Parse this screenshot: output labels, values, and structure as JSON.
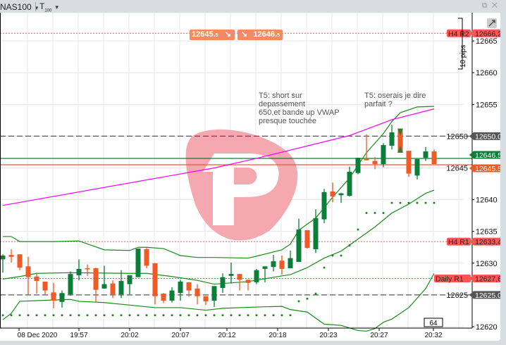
{
  "header": {
    "symbol": "NAS100",
    "timeframe": "T",
    "timeframe_sub": "100",
    "icons": [
      "popout-icon",
      "close-icon"
    ]
  },
  "quote": {
    "bid": "12645.",
    "bid_small": "5",
    "ask": "12646.",
    "ask_small": "5"
  },
  "annotations": [
    {
      "lines": [
        "T5: short sur",
        "depassement",
        "650,et bande up VWAP",
        "presque touchée"
      ]
    },
    {
      "lines": [
        "T5: oserais je dire",
        "parfait ?"
      ]
    }
  ],
  "measure_label": "10 pips",
  "cursor_badge": "64",
  "colors": {
    "up": "#0b7f3a",
    "down": "#f05a24",
    "band": "#1a8a1a",
    "vwap": "#ff00ff",
    "pivot": "#ff4d4d",
    "sar": "#1a8a1a",
    "watermark": "#f6a8b0"
  },
  "chart_data": {
    "type": "candlestick",
    "y_ticks": [
      12620,
      12625,
      12630,
      12635,
      12640,
      12645,
      12650,
      12655,
      12660,
      12665
    ],
    "ylim": [
      12619.8,
      12668.1
    ],
    "grid": true,
    "x_labels": [
      "08 Dec 2020",
      "19:57",
      "20:02",
      "20:07",
      "20:12",
      "20:18",
      "20:23",
      "20:27",
      "20:32"
    ],
    "candles": [
      [
        12630.6,
        12631.4,
        12628.5,
        12631.2
      ],
      [
        12631.3,
        12632.2,
        12630.1,
        12631.0
      ],
      [
        12631.4,
        12631.4,
        12628.9,
        12629.3
      ],
      [
        12629.5,
        12631.0,
        12625.1,
        12627.8
      ],
      [
        12627.9,
        12628.5,
        12625.2,
        12627.2
      ],
      [
        12627.1,
        12627.1,
        12625.1,
        12625.7
      ],
      [
        12625.4,
        12626.9,
        12622.9,
        12624.1
      ],
      [
        12623.9,
        12625.7,
        12623.0,
        12625.3
      ],
      [
        12625.1,
        12628.7,
        12624.9,
        12628.3
      ],
      [
        12628.1,
        12630.6,
        12627.3,
        12629.1
      ],
      [
        12629.2,
        12629.8,
        12628.0,
        12629.1
      ],
      [
        12629.2,
        12629.3,
        12623.8,
        12625.8
      ],
      [
        12626.0,
        12629.6,
        12626.0,
        12626.7
      ],
      [
        12626.8,
        12627.3,
        12624.5,
        12625.1
      ],
      [
        12625.1,
        12628.9,
        12624.5,
        12627.2
      ],
      [
        12626.7,
        12628.1,
        12625.1,
        12628.1
      ],
      [
        12627.8,
        12632.3,
        12627.8,
        12632.3
      ],
      [
        12632.2,
        12632.5,
        12629.2,
        12629.6
      ],
      [
        12630.0,
        12630.0,
        12623.5,
        12624.8
      ],
      [
        12625.2,
        12625.3,
        12623.7,
        12624.1
      ],
      [
        12624.1,
        12626.2,
        12623.8,
        12625.7
      ],
      [
        12625.3,
        12627.4,
        12624.1,
        12627.1
      ],
      [
        12627.0,
        12627.0,
        12624.7,
        12625.7
      ],
      [
        12626.0,
        12626.7,
        12623.5,
        12624.8
      ],
      [
        12624.8,
        12624.8,
        12623.4,
        12624.0
      ],
      [
        12624.1,
        12626.4,
        12623.1,
        12626.4
      ],
      [
        12626.1,
        12628.4,
        12625.3,
        12627.8
      ],
      [
        12628.0,
        12630.1,
        12626.8,
        12628.3
      ],
      [
        12628.3,
        12628.3,
        12625.7,
        12627.4
      ],
      [
        12627.4,
        12627.4,
        12625.7,
        12626.9
      ],
      [
        12627.0,
        12629.1,
        12626.7,
        12628.9
      ],
      [
        12629.1,
        12629.5,
        12627.0,
        12629.5
      ],
      [
        12629.4,
        12631.3,
        12628.7,
        12630.3
      ],
      [
        12630.4,
        12631.2,
        12628.2,
        12629.1
      ],
      [
        12629.2,
        12632.0,
        12629.2,
        12630.8
      ],
      [
        12630.2,
        12637.0,
        12630.2,
        12635.3
      ],
      [
        12635.2,
        12635.2,
        12632.3,
        12632.4
      ],
      [
        12632.2,
        12638.5,
        12631.6,
        12637.1
      ],
      [
        12636.9,
        12641.7,
        12636.3,
        12641.2
      ],
      [
        12641.3,
        12642.7,
        12639.6,
        12640.5
      ],
      [
        12640.7,
        12641.1,
        12639.5,
        12641.0
      ],
      [
        12640.6,
        12645.2,
        12640.5,
        12644.4
      ],
      [
        12644.2,
        12646.6,
        12644.0,
        12646.6
      ],
      [
        12646.5,
        12650.3,
        12646.2,
        12646.2
      ],
      [
        12646.1,
        12646.7,
        12644.8,
        12645.6
      ],
      [
        12645.6,
        12648.9,
        12645.1,
        12648.6
      ],
      [
        12648.5,
        12651.8,
        12647.9,
        12650.6
      ],
      [
        12651.2,
        12651.2,
        12647.4,
        12647.4
      ],
      [
        12647.7,
        12647.7,
        12643.6,
        12644.1
      ],
      [
        12643.8,
        12646.4,
        12643.2,
        12646.4
      ],
      [
        12646.6,
        12648.3,
        12646.1,
        12647.6
      ],
      [
        12647.6,
        12647.9,
        12645.6,
        12645.6
      ]
    ],
    "candle_fields": [
      "open",
      "high",
      "low",
      "close"
    ],
    "bollinger_upper": [
      [
        0,
        12634.2
      ],
      [
        1,
        12634.2
      ],
      [
        2,
        12633.4
      ],
      [
        6,
        12633.4
      ],
      [
        9,
        12633.5
      ],
      [
        12,
        12632.1
      ],
      [
        15,
        12632.0
      ],
      [
        16,
        12632.5
      ],
      [
        17,
        12632.5
      ],
      [
        19,
        12632.3
      ],
      [
        21,
        12631.2
      ],
      [
        23,
        12630.9
      ],
      [
        25,
        12630.9
      ],
      [
        29,
        12630.8
      ],
      [
        30,
        12631.1
      ],
      [
        33,
        12632.1
      ],
      [
        34,
        12633.0
      ],
      [
        35,
        12635.2
      ],
      [
        37,
        12637.1
      ],
      [
        39,
        12640.4
      ],
      [
        41,
        12643.4
      ],
      [
        43,
        12647.4
      ],
      [
        45,
        12650.4
      ],
      [
        46,
        12652.3
      ],
      [
        47,
        12653.7
      ],
      [
        49,
        12654.6
      ],
      [
        51,
        12654.7
      ]
    ],
    "bollinger_middle": [
      [
        0,
        12627.5
      ],
      [
        2,
        12627.9
      ],
      [
        4,
        12628.4
      ],
      [
        8,
        12628.5
      ],
      [
        15,
        12628.4
      ],
      [
        17,
        12628.4
      ],
      [
        20,
        12627.9
      ],
      [
        23,
        12627.3
      ],
      [
        25,
        12626.7
      ],
      [
        29,
        12627.1
      ],
      [
        33,
        12628.0
      ],
      [
        34,
        12628.2
      ],
      [
        36,
        12629.3
      ],
      [
        38,
        12630.8
      ],
      [
        40,
        12631.9
      ],
      [
        42,
        12633.8
      ],
      [
        44,
        12635.7
      ],
      [
        46,
        12637.9
      ],
      [
        48,
        12639.3
      ],
      [
        50,
        12641.0
      ],
      [
        51,
        12641.5
      ]
    ],
    "bollinger_lower": [
      [
        0,
        12621.1
      ],
      [
        1,
        12622.1
      ],
      [
        2,
        12624.0
      ],
      [
        4,
        12624.1
      ],
      [
        8,
        12624.3
      ],
      [
        9,
        12624.0
      ],
      [
        12,
        12623.8
      ],
      [
        15,
        12623.4
      ],
      [
        18,
        12623.0
      ],
      [
        21,
        12623.0
      ],
      [
        24,
        12622.6
      ],
      [
        26,
        12622.9
      ],
      [
        30,
        12623.1
      ],
      [
        33,
        12623.2
      ],
      [
        34,
        12622.7
      ],
      [
        36,
        12622.3
      ],
      [
        38,
        12620.4
      ],
      [
        40,
        12620.2
      ],
      [
        42,
        12619.4
      ],
      [
        43,
        12619.3
      ],
      [
        44,
        12619.7
      ],
      [
        45,
        12620.7
      ],
      [
        46,
        12621.2
      ],
      [
        48,
        12623.0
      ],
      [
        50,
        12626.0
      ],
      [
        51,
        12628.4
      ]
    ],
    "vwap": [
      [
        0,
        12639.1
      ],
      [
        25,
        12645.0
      ],
      [
        30,
        12646.5
      ],
      [
        41,
        12650.1
      ],
      [
        46,
        12652.6
      ],
      [
        51,
        12654.3
      ]
    ],
    "parabolic_sar": [
      12621.8,
      12621.8,
      12621.8,
      12621.8,
      12621.8,
      12621.8,
      12621.8,
      12621.8,
      12621.8,
      12621.8,
      12621.8,
      12621.8,
      12621.8,
      12621.8,
      12621.8,
      12621.8,
      12621.8,
      12621.8,
      12621.8,
      12621.8,
      12621.8,
      12621.8,
      12621.8,
      12621.8,
      12621.8,
      12621.8,
      12621.8,
      12621.8,
      12621.8,
      12621.8,
      12621.8,
      12621.8,
      12621.8,
      12621.8,
      12621.8,
      12624.0,
      12624.4,
      12625.2,
      12629.3,
      12631.2,
      12631.2,
      12632.8,
      12635.3,
      12637.9,
      12637.9,
      12637.9,
      12639.5,
      12639.5,
      12639.5,
      12639.5,
      12639.5,
      12639.5
    ],
    "marker_candle": 47,
    "levels": [
      {
        "name": "H4 R2",
        "value": "12666,2",
        "price": 12666.2,
        "style": "pivot"
      },
      {
        "name": "",
        "value": "12650.0",
        "price": 12650.0,
        "style": "dashed"
      },
      {
        "name": "",
        "value": "12646.5",
        "price": 12646.5,
        "style": "ask"
      },
      {
        "name": "",
        "value": "12645.5",
        "price": 12645.5,
        "style": "bid"
      },
      {
        "name": "H4 R1",
        "value": "12633,4",
        "price": 12633.4,
        "style": "pivot"
      },
      {
        "name": "Daily R1",
        "value": "12627,6",
        "price": 12627.6,
        "style": "pivot"
      },
      {
        "name": "",
        "value": "12625.0",
        "price": 12625.0,
        "style": "dashed"
      }
    ]
  }
}
